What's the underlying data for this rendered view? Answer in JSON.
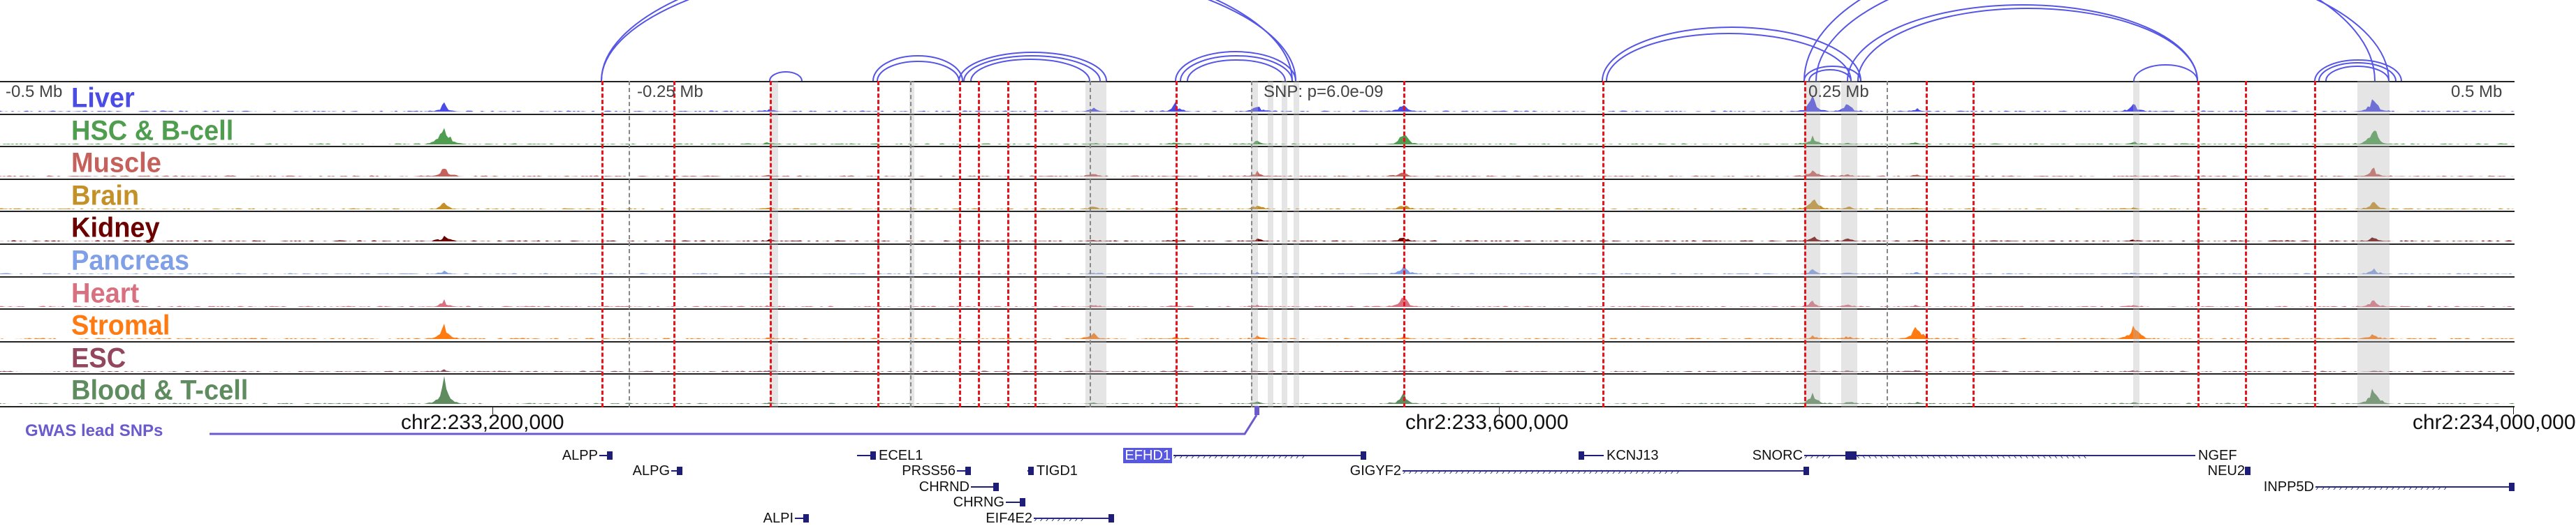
{
  "scale": {
    "left": "-0.5 Mb",
    "left_mid": "-0.25 Mb",
    "snp": "SNP: p=6.0e-09",
    "right_mid": "0.25 Mb",
    "right": "0.5 Mb"
  },
  "tracks": [
    {
      "label": "Liver",
      "color": "#4b4be6"
    },
    {
      "label": "HSC & B-cell",
      "color": "#4f9e4f"
    },
    {
      "label": "Muscle",
      "color": "#c6605a"
    },
    {
      "label": "Brain",
      "color": "#c49028"
    },
    {
      "label": "Kidney",
      "color": "#6b0000"
    },
    {
      "label": "Pancreas",
      "color": "#7f9fe6"
    },
    {
      "label": "Heart",
      "color": "#d87080"
    },
    {
      "label": "Stromal",
      "color": "#ff7a10"
    },
    {
      "label": "ESC",
      "color": "#93475f"
    },
    {
      "label": "Blood & T-cell",
      "color": "#5e8c5e"
    }
  ],
  "coords": {
    "c1": "chr2:233,200,000",
    "c2": "chr2:233,600,000",
    "c3": "chr2:234,000,000"
  },
  "gwas": {
    "label": "GWAS lead SNPs",
    "color": "#6a5acd"
  },
  "genes": {
    "ALPP": "ALPP",
    "ALPG": "ALPG",
    "ALPI": "ALPI",
    "ECEL1": "ECEL1",
    "PRSS56": "PRSS56",
    "CHRND": "CHRND",
    "CHRNG": "CHRNG",
    "EIF4E2": "EIF4E2",
    "TIGD1": "TIGD1",
    "EFHD1": "EFHD1",
    "GIGYF2": "GIGYF2",
    "KCNJ13": "KCNJ13",
    "SNORC": "SNORC",
    "NGEF": "NGEF",
    "NEU2": "NEU2",
    "INPP5D": "INPP5D"
  },
  "arc_color": "#5555e6"
}
